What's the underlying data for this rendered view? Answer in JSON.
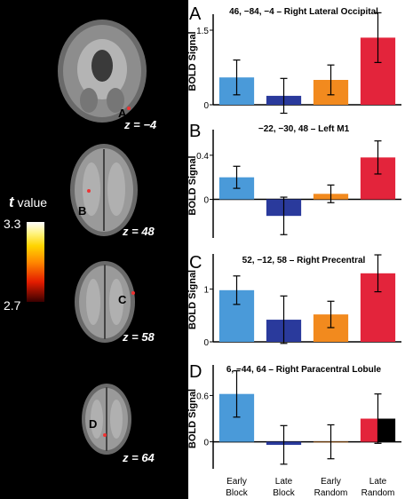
{
  "brain_panel": {
    "colorbar": {
      "symbol": "t",
      "word": "value",
      "max": "3.3",
      "min": "2.7"
    },
    "slices": [
      {
        "z_label": "z = −4",
        "roi_letter": "A"
      },
      {
        "z_label": "z = 48",
        "roi_letter": "B"
      },
      {
        "z_label": "z = 58",
        "roi_letter": "C"
      },
      {
        "z_label": "z = 64",
        "roi_letter": "D"
      }
    ]
  },
  "colors": {
    "early_block": "#4a9ad9",
    "late_block": "#2a3a9c",
    "early_random": "#f28a1e",
    "late_random": "#e3243b",
    "late_random_alt": "#000000"
  },
  "chart_data": [
    {
      "type": "bar",
      "panel_letter": "A",
      "title": "46, −84, −4 – Right Lateral Occipital",
      "ylabel": "BOLD Signal",
      "yticks": [
        0,
        1.5
      ],
      "ylim": [
        0,
        1.75
      ],
      "categories": [
        "Early Block",
        "Late Block",
        "Early Random",
        "Late Random"
      ],
      "values": [
        0.55,
        0.18,
        0.5,
        1.35
      ],
      "errors": [
        0.35,
        0.35,
        0.3,
        0.5
      ]
    },
    {
      "type": "bar",
      "panel_letter": "B",
      "title": "−22, −30, 48 – Left M1",
      "ylabel": "BOLD Signal",
      "yticks": [
        0,
        0.4
      ],
      "ylim": [
        -0.35,
        0.6
      ],
      "categories": [
        "Early Block",
        "Late Block",
        "Early Random",
        "Late Random"
      ],
      "values": [
        0.2,
        -0.15,
        0.05,
        0.38
      ],
      "errors": [
        0.1,
        0.17,
        0.08,
        0.15
      ]
    },
    {
      "type": "bar",
      "panel_letter": "C",
      "title": "52, −12, 58 – Right Precentral",
      "ylabel": "BOLD Signal",
      "yticks": [
        0,
        1.0
      ],
      "ylim": [
        0,
        1.6
      ],
      "categories": [
        "Early Block",
        "Late Block",
        "Early Random",
        "Late Random"
      ],
      "values": [
        0.98,
        0.42,
        0.52,
        1.3
      ],
      "errors": [
        0.27,
        0.45,
        0.25,
        0.35
      ]
    },
    {
      "type": "bar",
      "panel_letter": "D",
      "title": "6, −44, 64 – Right Paracentral Lobule",
      "ylabel": "BOLD Signal",
      "yticks": [
        0,
        0.6
      ],
      "ylim": [
        -0.35,
        0.95
      ],
      "categories": [
        "Early Block",
        "Late Block",
        "Early Random",
        "Late Random"
      ],
      "values": [
        0.62,
        -0.04,
        0.0,
        0.3
      ],
      "errors": [
        0.3,
        0.25,
        0.22,
        0.32
      ]
    }
  ]
}
